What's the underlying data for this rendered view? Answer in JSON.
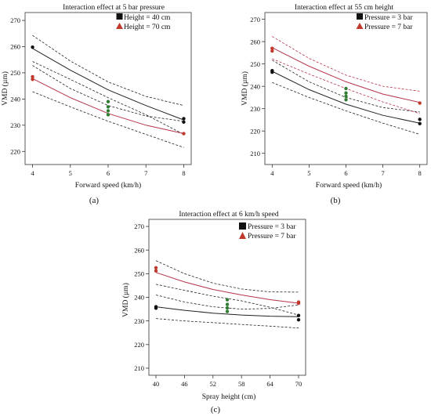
{
  "chart_data": [
    {
      "type": "line",
      "panel_label": "(a)",
      "title": "Interaction effect at 5 bar pressure",
      "xlabel": "Forward speed (km/h)",
      "ylabel": "VMD (µm)",
      "xlim": [
        4,
        8
      ],
      "ylim": [
        215,
        273
      ],
      "xticks": [
        4,
        5,
        6,
        7,
        8
      ],
      "yticks": [
        220,
        230,
        240,
        250,
        260,
        270
      ],
      "legend_position": "top-right",
      "center_points": [
        {
          "x": 6,
          "y": 239
        },
        {
          "x": 6,
          "y": 237
        },
        {
          "x": 6,
          "y": 235.5
        },
        {
          "x": 6,
          "y": 234
        }
      ],
      "series": [
        {
          "name": "Height = 40 cm",
          "color": "#222222",
          "band_color": "#222222",
          "marker": "square",
          "points": [
            {
              "x": 4,
              "y": 259.8
            },
            {
              "x": 8,
              "y": 232.5
            },
            {
              "x": 8,
              "y": 231.2
            }
          ],
          "fit": [
            {
              "x": 4,
              "y": 259.3
            },
            {
              "x": 5,
              "y": 251.0
            },
            {
              "x": 6,
              "y": 243.5
            },
            {
              "x": 7,
              "y": 237.5
            },
            {
              "x": 8,
              "y": 232.0
            }
          ],
          "band_upper": [
            {
              "x": 4,
              "y": 264.3
            },
            {
              "x": 5,
              "y": 254.5
            },
            {
              "x": 6,
              "y": 246.5
            },
            {
              "x": 7,
              "y": 241.0
            },
            {
              "x": 8,
              "y": 237.5
            }
          ],
          "band_lower": [
            {
              "x": 4,
              "y": 254.3
            },
            {
              "x": 5,
              "y": 247.5
            },
            {
              "x": 6,
              "y": 240.5
            },
            {
              "x": 7,
              "y": 234.0
            },
            {
              "x": 8,
              "y": 226.5
            }
          ]
        },
        {
          "name": "Height = 70 cm",
          "color": "#b5344a",
          "band_color": "#222222",
          "marker": "triangle",
          "points": [
            {
              "x": 4,
              "y": 248.5
            },
            {
              "x": 4,
              "y": 247.5
            },
            {
              "x": 8,
              "y": 226.8
            }
          ],
          "fit": [
            {
              "x": 4,
              "y": 247.8
            },
            {
              "x": 5,
              "y": 240.5
            },
            {
              "x": 6,
              "y": 234.5
            },
            {
              "x": 7,
              "y": 230.0
            },
            {
              "x": 8,
              "y": 226.8
            }
          ],
          "band_upper": [
            {
              "x": 4,
              "y": 252.8
            },
            {
              "x": 5,
              "y": 244.0
            },
            {
              "x": 6,
              "y": 237.5
            },
            {
              "x": 7,
              "y": 233.5
            },
            {
              "x": 8,
              "y": 231.5
            }
          ],
          "band_lower": [
            {
              "x": 4,
              "y": 242.8
            },
            {
              "x": 5,
              "y": 237.0
            },
            {
              "x": 6,
              "y": 231.5
            },
            {
              "x": 7,
              "y": 226.5
            },
            {
              "x": 8,
              "y": 221.5
            }
          ]
        }
      ]
    },
    {
      "type": "line",
      "panel_label": "(b)",
      "title": "Interaction effect at 55 cm height",
      "xlabel": "Forward speed (km/h)",
      "ylabel": "VMD (µm)",
      "xlim": [
        4,
        8
      ],
      "ylim": [
        205,
        273
      ],
      "xticks": [
        4,
        5,
        6,
        7,
        8
      ],
      "yticks": [
        210,
        220,
        230,
        240,
        250,
        260,
        270
      ],
      "legend_position": "top-right",
      "center_points": [
        {
          "x": 6,
          "y": 239
        },
        {
          "x": 6,
          "y": 237
        },
        {
          "x": 6,
          "y": 235.5
        },
        {
          "x": 6,
          "y": 234
        }
      ],
      "series": [
        {
          "name": "Pressure = 3 bar",
          "color": "#222222",
          "band_color": "#222222",
          "marker": "square",
          "points": [
            {
              "x": 4,
              "y": 247.0
            },
            {
              "x": 4,
              "y": 246.3
            },
            {
              "x": 8,
              "y": 225.2
            },
            {
              "x": 8,
              "y": 223.3
            }
          ],
          "fit": [
            {
              "x": 4,
              "y": 246.7
            },
            {
              "x": 5,
              "y": 238.5
            },
            {
              "x": 6,
              "y": 232.0
            },
            {
              "x": 7,
              "y": 227.0
            },
            {
              "x": 8,
              "y": 223.5
            }
          ],
          "band_upper": [
            {
              "x": 4,
              "y": 251.7
            },
            {
              "x": 5,
              "y": 242.0
            },
            {
              "x": 6,
              "y": 235.0
            },
            {
              "x": 7,
              "y": 230.5
            },
            {
              "x": 8,
              "y": 228.5
            }
          ],
          "band_lower": [
            {
              "x": 4,
              "y": 241.7
            },
            {
              "x": 5,
              "y": 235.0
            },
            {
              "x": 6,
              "y": 229.0
            },
            {
              "x": 7,
              "y": 223.5
            },
            {
              "x": 8,
              "y": 218.5
            }
          ]
        },
        {
          "name": "Pressure = 7 bar",
          "color": "#b5344a",
          "band_color": "#b5344a",
          "marker": "triangle",
          "points": [
            {
              "x": 4,
              "y": 257.0
            },
            {
              "x": 4,
              "y": 255.8
            },
            {
              "x": 8,
              "y": 232.5
            }
          ],
          "fit": [
            {
              "x": 4,
              "y": 257.3
            },
            {
              "x": 5,
              "y": 249.0
            },
            {
              "x": 6,
              "y": 242.0
            },
            {
              "x": 7,
              "y": 236.5
            },
            {
              "x": 8,
              "y": 232.8
            }
          ],
          "band_upper": [
            {
              "x": 4,
              "y": 262.3
            },
            {
              "x": 5,
              "y": 252.5
            },
            {
              "x": 6,
              "y": 245.0
            },
            {
              "x": 7,
              "y": 240.0
            },
            {
              "x": 8,
              "y": 237.8
            }
          ],
          "band_lower": [
            {
              "x": 4,
              "y": 252.3
            },
            {
              "x": 5,
              "y": 245.5
            },
            {
              "x": 6,
              "y": 239.0
            },
            {
              "x": 7,
              "y": 233.0
            },
            {
              "x": 8,
              "y": 227.8
            }
          ]
        }
      ]
    },
    {
      "type": "line",
      "panel_label": "(c)",
      "title": "Interaction effect at 6 km/h speed",
      "xlabel": "Spray height (cm)",
      "ylabel": "VMD (µm)",
      "xlim": [
        40,
        70
      ],
      "ylim": [
        207,
        273
      ],
      "xticks": [
        40,
        46,
        52,
        58,
        64,
        70
      ],
      "yticks": [
        210,
        220,
        230,
        240,
        250,
        260,
        270
      ],
      "legend_position": "top-right",
      "center_points": [
        {
          "x": 55,
          "y": 239
        },
        {
          "x": 55,
          "y": 237
        },
        {
          "x": 55,
          "y": 235.5
        },
        {
          "x": 55,
          "y": 234
        }
      ],
      "series": [
        {
          "name": "Pressure = 3 bar",
          "color": "#222222",
          "band_color": "#222222",
          "marker": "square",
          "points": [
            {
              "x": 40,
              "y": 236.0
            },
            {
              "x": 40,
              "y": 235.4
            },
            {
              "x": 70,
              "y": 232.3
            },
            {
              "x": 70,
              "y": 230.5
            }
          ],
          "fit": [
            {
              "x": 40,
              "y": 236.0
            },
            {
              "x": 46,
              "y": 234.5
            },
            {
              "x": 52,
              "y": 233.3
            },
            {
              "x": 58,
              "y": 232.5
            },
            {
              "x": 64,
              "y": 232.0
            },
            {
              "x": 70,
              "y": 231.8
            }
          ],
          "band_upper": [
            {
              "x": 40,
              "y": 241.0
            },
            {
              "x": 46,
              "y": 238.0
            },
            {
              "x": 52,
              "y": 236.0
            },
            {
              "x": 58,
              "y": 235.0
            },
            {
              "x": 64,
              "y": 235.3
            },
            {
              "x": 70,
              "y": 236.8
            }
          ],
          "band_lower": [
            {
              "x": 40,
              "y": 231.0
            },
            {
              "x": 46,
              "y": 230.0
            },
            {
              "x": 52,
              "y": 229.3
            },
            {
              "x": 58,
              "y": 228.5
            },
            {
              "x": 64,
              "y": 227.8
            },
            {
              "x": 70,
              "y": 227.0
            }
          ]
        },
        {
          "name": "Pressure = 7 bar",
          "color": "#b5344a",
          "band_color": "#222222",
          "marker": "triangle",
          "points": [
            {
              "x": 40,
              "y": 252.5
            },
            {
              "x": 40,
              "y": 251.2
            },
            {
              "x": 70,
              "y": 238.0
            },
            {
              "x": 70,
              "y": 237.5
            }
          ],
          "fit": [
            {
              "x": 40,
              "y": 250.5
            },
            {
              "x": 46,
              "y": 246.5
            },
            {
              "x": 52,
              "y": 243.3
            },
            {
              "x": 58,
              "y": 241.0
            },
            {
              "x": 64,
              "y": 239.0
            },
            {
              "x": 70,
              "y": 237.5
            }
          ],
          "band_upper": [
            {
              "x": 40,
              "y": 255.5
            },
            {
              "x": 46,
              "y": 250.0
            },
            {
              "x": 52,
              "y": 246.0
            },
            {
              "x": 58,
              "y": 243.5
            },
            {
              "x": 64,
              "y": 242.3
            },
            {
              "x": 70,
              "y": 242.2
            }
          ],
          "band_lower": [
            {
              "x": 40,
              "y": 245.5
            },
            {
              "x": 46,
              "y": 243.0
            },
            {
              "x": 52,
              "y": 240.5
            },
            {
              "x": 58,
              "y": 238.5
            },
            {
              "x": 64,
              "y": 235.8
            },
            {
              "x": 70,
              "y": 232.5
            }
          ]
        }
      ]
    }
  ],
  "colors": {
    "center_points": "#2e7d32",
    "frame": "#333333"
  }
}
